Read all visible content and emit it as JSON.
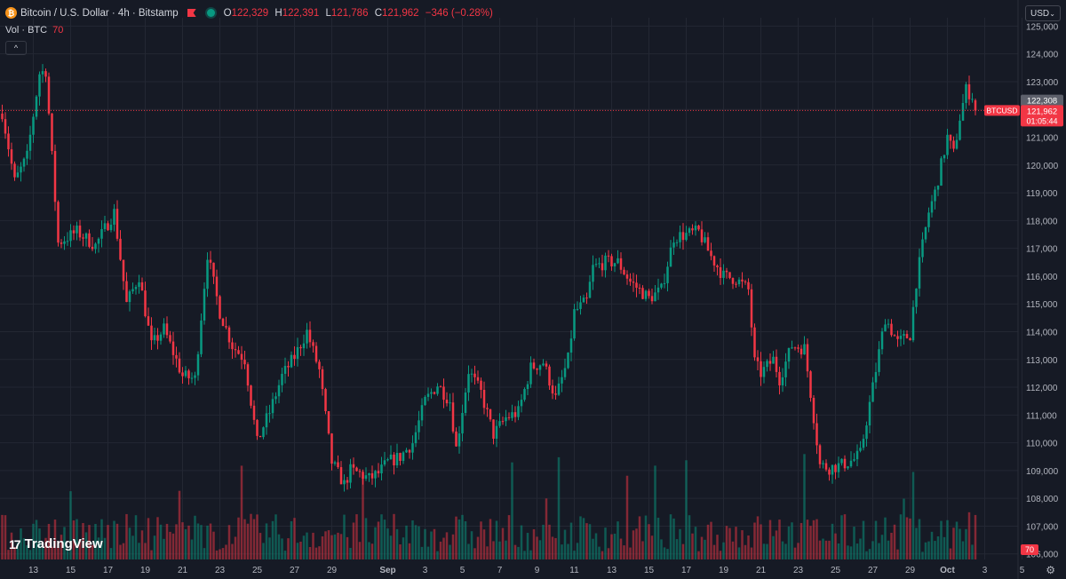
{
  "header": {
    "coin_glyph": "₿",
    "title": "Bitcoin / U.S. Dollar · 4h · Bitstamp",
    "o_label": "O",
    "o_value": "122,329",
    "h_label": "H",
    "h_value": "122,391",
    "l_label": "L",
    "l_value": "121,786",
    "c_label": "C",
    "c_value": "121,962",
    "change": "−346 (−0.28%)"
  },
  "volume_legend": {
    "label": "Vol · BTC",
    "value": "70"
  },
  "currency_selector": {
    "value": "USD"
  },
  "logo": {
    "mark": "17",
    "text": "TradingView"
  },
  "colors": {
    "up": "#089981",
    "down": "#f23645",
    "background": "#161a25",
    "grid": "#232733",
    "text": "#d1d4dc"
  },
  "chart_data": {
    "type": "candlestick",
    "symbol": "BTCUSD",
    "interval": "4h",
    "ylim": [
      105800,
      125300
    ],
    "y_ticks": [
      106000,
      107000,
      108000,
      109000,
      110000,
      111000,
      112000,
      113000,
      114000,
      115000,
      116000,
      117000,
      118000,
      119000,
      120000,
      121000,
      122000,
      123000,
      124000,
      125000
    ],
    "x_ticks": [
      {
        "label": "13",
        "pos": 10
      },
      {
        "label": "15",
        "pos": 22
      },
      {
        "label": "17",
        "pos": 34
      },
      {
        "label": "19",
        "pos": 46
      },
      {
        "label": "21",
        "pos": 58
      },
      {
        "label": "23",
        "pos": 70
      },
      {
        "label": "25",
        "pos": 82
      },
      {
        "label": "27",
        "pos": 94
      },
      {
        "label": "29",
        "pos": 106
      },
      {
        "label": "Sep",
        "pos": 124
      },
      {
        "label": "3",
        "pos": 136
      },
      {
        "label": "5",
        "pos": 148
      },
      {
        "label": "7",
        "pos": 160
      },
      {
        "label": "9",
        "pos": 172
      },
      {
        "label": "11",
        "pos": 184
      },
      {
        "label": "13",
        "pos": 196
      },
      {
        "label": "15",
        "pos": 208
      },
      {
        "label": "17",
        "pos": 220
      },
      {
        "label": "19",
        "pos": 232
      },
      {
        "label": "21",
        "pos": 244
      },
      {
        "label": "23",
        "pos": 256
      },
      {
        "label": "25",
        "pos": 268
      },
      {
        "label": "27",
        "pos": 280
      },
      {
        "label": "29",
        "pos": 292
      },
      {
        "label": "Oct",
        "pos": 304
      },
      {
        "label": "3",
        "pos": 316
      },
      {
        "label": "5",
        "pos": 328
      }
    ],
    "last_price_label": "BTCUSD",
    "last_price": "121,962",
    "countdown": "01:05:44",
    "prev_price": "122,308",
    "volume_last": "70",
    "volume_max": 130,
    "anchors": [
      [
        0,
        121900
      ],
      [
        4,
        119400
      ],
      [
        8,
        120300
      ],
      [
        12,
        123300
      ],
      [
        14,
        123400
      ],
      [
        18,
        117200
      ],
      [
        24,
        117600
      ],
      [
        30,
        117100
      ],
      [
        36,
        118300
      ],
      [
        40,
        115000
      ],
      [
        44,
        116000
      ],
      [
        48,
        113500
      ],
      [
        52,
        114100
      ],
      [
        58,
        112400
      ],
      [
        62,
        112300
      ],
      [
        66,
        116800
      ],
      [
        70,
        114700
      ],
      [
        74,
        113500
      ],
      [
        78,
        113000
      ],
      [
        82,
        110000
      ],
      [
        84,
        110600
      ],
      [
        86,
        111100
      ],
      [
        90,
        112400
      ],
      [
        94,
        113100
      ],
      [
        98,
        114000
      ],
      [
        102,
        112600
      ],
      [
        106,
        109300
      ],
      [
        110,
        108500
      ],
      [
        112,
        109000
      ],
      [
        115,
        108900
      ],
      [
        118,
        108700
      ],
      [
        121,
        108900
      ],
      [
        124,
        109300
      ],
      [
        128,
        109500
      ],
      [
        132,
        110000
      ],
      [
        136,
        111500
      ],
      [
        140,
        112100
      ],
      [
        144,
        111500
      ],
      [
        146,
        109800
      ],
      [
        150,
        112600
      ],
      [
        154,
        111800
      ],
      [
        158,
        110300
      ],
      [
        162,
        110900
      ],
      [
        166,
        111100
      ],
      [
        170,
        112700
      ],
      [
        174,
        112900
      ],
      [
        178,
        111600
      ],
      [
        182,
        113000
      ],
      [
        184,
        114700
      ],
      [
        188,
        115100
      ],
      [
        190,
        116300
      ],
      [
        194,
        116500
      ],
      [
        198,
        116500
      ],
      [
        202,
        115800
      ],
      [
        208,
        115200
      ],
      [
        212,
        115500
      ],
      [
        216,
        117400
      ],
      [
        220,
        117500
      ],
      [
        224,
        117600
      ],
      [
        228,
        116700
      ],
      [
        232,
        116000
      ],
      [
        236,
        115900
      ],
      [
        240,
        115500
      ],
      [
        242,
        112900
      ],
      [
        244,
        112500
      ],
      [
        248,
        113000
      ],
      [
        250,
        112300
      ],
      [
        254,
        113500
      ],
      [
        258,
        113400
      ],
      [
        260,
        111800
      ],
      [
        263,
        109200
      ],
      [
        266,
        109100
      ],
      [
        270,
        109200
      ],
      [
        274,
        109400
      ],
      [
        276,
        109600
      ],
      [
        280,
        112000
      ],
      [
        284,
        114500
      ],
      [
        288,
        113600
      ],
      [
        292,
        113900
      ],
      [
        294,
        115800
      ],
      [
        296,
        117100
      ],
      [
        298,
        118300
      ],
      [
        300,
        119000
      ],
      [
        304,
        121000
      ],
      [
        306,
        120400
      ],
      [
        308,
        121700
      ],
      [
        310,
        122700
      ],
      [
        312,
        122500
      ],
      [
        313,
        121962
      ]
    ]
  }
}
